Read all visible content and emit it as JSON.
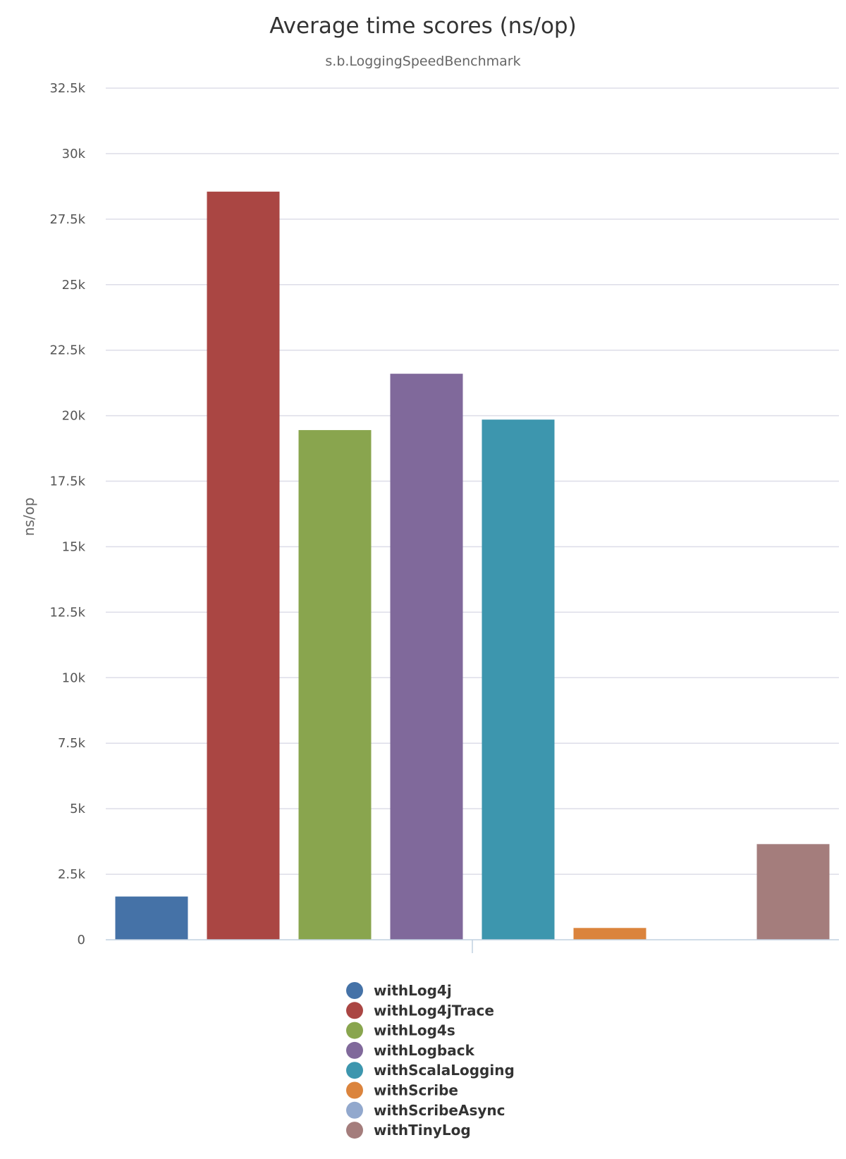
{
  "chart_data": {
    "type": "bar",
    "title": "Average time scores (ns/op)",
    "subtitle": "s.b.LoggingSpeedBenchmark",
    "ylabel": "ns/op",
    "xlabel": "",
    "ylim": [
      0,
      32500
    ],
    "yticks": [
      "0",
      "2.5k",
      "5k",
      "7.5k",
      "10k",
      "12.5k",
      "15k",
      "17.5k",
      "20k",
      "22.5k",
      "25k",
      "27.5k",
      "30k",
      "32.5k"
    ],
    "grid": true,
    "legend_position": "bottom-center",
    "series": [
      {
        "name": "withLog4j",
        "color": "#4572A7",
        "value": 1650
      },
      {
        "name": "withLog4jTrace",
        "color": "#AA4643",
        "value": 28550
      },
      {
        "name": "withLog4s",
        "color": "#89A54E",
        "value": 19450
      },
      {
        "name": "withLogback",
        "color": "#80699B",
        "value": 21600
      },
      {
        "name": "withScalaLogging",
        "color": "#3D96AE",
        "value": 19850
      },
      {
        "name": "withScribe",
        "color": "#DB843D",
        "value": 450
      },
      {
        "name": "withScribeAsync",
        "color": "#92A8CD",
        "value": 0
      },
      {
        "name": "withTinyLog",
        "color": "#A47D7C",
        "value": 3650
      }
    ]
  }
}
